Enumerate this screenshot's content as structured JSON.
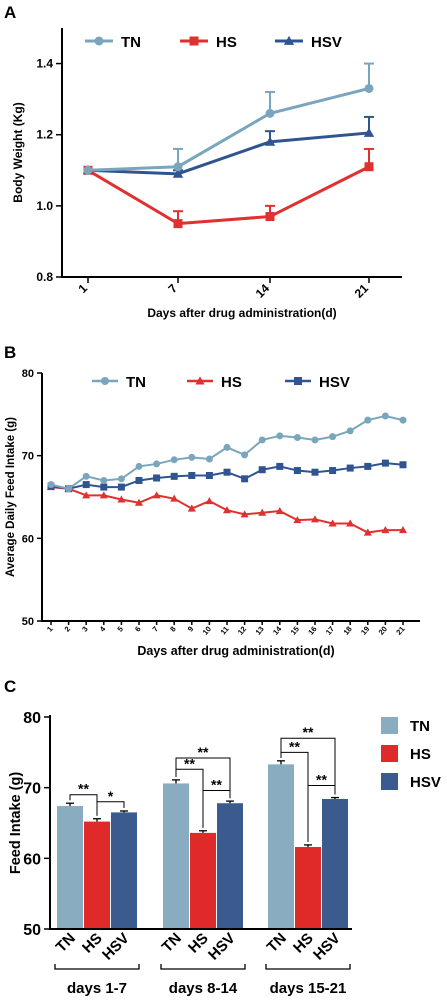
{
  "colors": {
    "TN": "#7aa6bd",
    "HS": "#e03030",
    "HSV": "#2f5490",
    "TN_bar": "#8aacc0",
    "HS_bar": "#e02a2a",
    "HSV_bar": "#3b5b8f"
  },
  "chart_data": [
    {
      "panel": "A",
      "type": "line",
      "ylabel": "Body Weight (Kg)",
      "xlabel": "Days after drug administration(d)",
      "ylim": [
        0.8,
        1.5
      ],
      "yticks": [
        "0.8",
        "1.0",
        "1.2",
        "1.4"
      ],
      "categories": [
        "1",
        "7",
        "14",
        "21"
      ],
      "legend_placement": "top",
      "series": [
        {
          "name": "TN",
          "marker": "circle",
          "values": [
            1.1,
            1.11,
            1.26,
            1.33
          ],
          "errors": [
            0.0,
            0.05,
            0.06,
            0.07
          ]
        },
        {
          "name": "HS",
          "marker": "square",
          "values": [
            1.1,
            0.95,
            0.97,
            1.11
          ],
          "errors": [
            0.0,
            0.035,
            0.03,
            0.05
          ]
        },
        {
          "name": "HSV",
          "marker": "triangle",
          "values": [
            1.1,
            1.09,
            1.18,
            1.205
          ],
          "errors": [
            0.0,
            0.01,
            0.03,
            0.045
          ]
        }
      ]
    },
    {
      "panel": "B",
      "type": "line",
      "ylabel": "Average Daily Feed Intake (g)",
      "xlabel": "Days after drug administration(d)",
      "ylim": [
        50,
        80
      ],
      "yticks": [
        "50",
        "60",
        "70",
        "80"
      ],
      "categories": [
        "1",
        "2",
        "3",
        "4",
        "5",
        "6",
        "7",
        "8",
        "9",
        "10",
        "11",
        "12",
        "13",
        "14",
        "15",
        "16",
        "17",
        "18",
        "19",
        "20",
        "21"
      ],
      "legend_placement": "top",
      "series": [
        {
          "name": "TN",
          "marker": "circle",
          "values": [
            66.5,
            66.0,
            67.5,
            67.0,
            67.2,
            68.7,
            69.0,
            69.5,
            69.8,
            69.6,
            71.0,
            70.1,
            71.9,
            72.4,
            72.2,
            71.9,
            72.3,
            73.0,
            74.3,
            74.8,
            74.3
          ]
        },
        {
          "name": "HS",
          "marker": "triangle",
          "values": [
            66.2,
            66.0,
            65.2,
            65.2,
            64.7,
            64.3,
            65.2,
            64.8,
            63.6,
            64.5,
            63.4,
            62.9,
            63.1,
            63.3,
            62.2,
            62.3,
            61.8,
            61.8,
            60.7,
            61.0,
            61.0
          ]
        },
        {
          "name": "HSV",
          "marker": "square",
          "values": [
            66.3,
            66.0,
            66.5,
            66.2,
            66.2,
            67.0,
            67.3,
            67.5,
            67.6,
            67.6,
            68.0,
            67.2,
            68.3,
            68.7,
            68.2,
            68.0,
            68.2,
            68.5,
            68.7,
            69.1,
            68.9
          ]
        }
      ]
    },
    {
      "panel": "C",
      "type": "bar",
      "ylabel": "Feed Intake (g)",
      "ylim": [
        50,
        80
      ],
      "yticks": [
        "50",
        "60",
        "70",
        "80"
      ],
      "group_names": [
        "days 1-7",
        "days 8-14",
        "days 15-21"
      ],
      "bar_labels": [
        "TN",
        "HS",
        "HSV"
      ],
      "legend_placement": "right",
      "series": [
        {
          "name": "TN",
          "values": [
            67.4,
            70.6,
            73.3
          ],
          "errors": [
            0.4,
            0.5,
            0.5
          ]
        },
        {
          "name": "HS",
          "values": [
            65.2,
            63.6,
            61.6
          ],
          "errors": [
            0.4,
            0.3,
            0.3
          ]
        },
        {
          "name": "HSV",
          "values": [
            66.5,
            67.8,
            68.4
          ],
          "errors": [
            0.2,
            0.3,
            0.2
          ]
        }
      ],
      "significance": [
        {
          "group": 0,
          "from": 0,
          "to": 1,
          "label": "**"
        },
        {
          "group": 0,
          "from": 1,
          "to": 2,
          "label": "*"
        },
        {
          "group": 1,
          "from": 0,
          "to": 1,
          "label": "**"
        },
        {
          "group": 1,
          "from": 0,
          "to": 2,
          "label": "**"
        },
        {
          "group": 1,
          "from": 1,
          "to": 2,
          "label": "**"
        },
        {
          "group": 2,
          "from": 0,
          "to": 1,
          "label": "**"
        },
        {
          "group": 2,
          "from": 0,
          "to": 2,
          "label": "**"
        },
        {
          "group": 2,
          "from": 1,
          "to": 2,
          "label": "**"
        }
      ]
    }
  ]
}
